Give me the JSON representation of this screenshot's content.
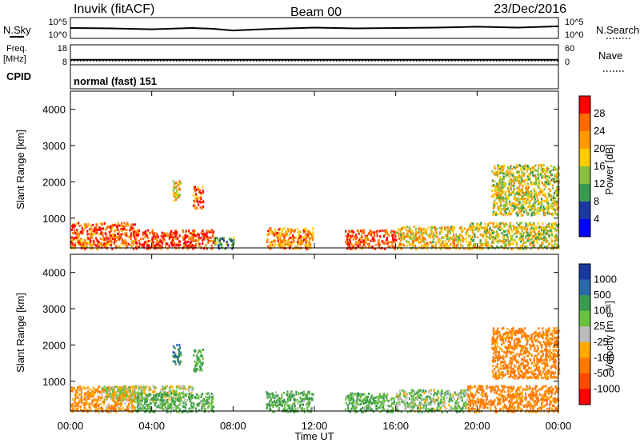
{
  "header": {
    "station": "Inuvik (fitACF)",
    "beam": "Beam 00",
    "date": "23/Dec/2016"
  },
  "panels": {
    "nsky_label": "N.Sky",
    "nsearch_label": "N.Search",
    "left_top_tick": "10^5",
    "left_bottom_tick": "10^0",
    "right_top_tick": "10^5",
    "right_bottom_tick": "10^0",
    "freq_label": "Freq.",
    "freq_unit": "[MHz]",
    "freq_top": "18",
    "freq_bottom": "8",
    "nave_label": "Nave",
    "nave_top": "60",
    "nave_bottom": "0",
    "cpid_label": "CPID",
    "cpid_value": "normal (fast) 151"
  },
  "axes": {
    "ylabel": "Slant Range [km]",
    "xlabel": "Time UT",
    "yticks": [
      "4000",
      "3000",
      "2000",
      "1000"
    ],
    "xticks": [
      "00:00",
      "04:00",
      "08:00",
      "12:00",
      "16:00",
      "20:00",
      "00:00"
    ]
  },
  "colorbars": {
    "power": {
      "label": "Power [dB]",
      "ticks": [
        "28",
        "24",
        "20",
        "16",
        "12",
        "8",
        "4"
      ],
      "colors": [
        "#ff0000",
        "#ff6a00",
        "#ff9a00",
        "#ffcc00",
        "#88c040",
        "#3a9a50",
        "#1a3aa0",
        "#0000ff"
      ]
    },
    "velocity": {
      "label": "Velocity [m s⁻¹]",
      "ticks": [
        "1000",
        "500",
        "100",
        "25",
        "-25",
        "-100",
        "-500",
        "-1000"
      ],
      "colors": [
        "#1a3aa0",
        "#2a6aa8",
        "#3a9a50",
        "#6ac040",
        "#bbbbbb",
        "#ffaa00",
        "#ff7a00",
        "#ff4a00",
        "#ff0000"
      ]
    }
  },
  "chart_data": [
    {
      "type": "line",
      "title": "N.Sky / N.Search",
      "x": [
        0,
        2,
        4,
        6,
        7,
        8,
        10,
        12,
        14,
        16,
        18,
        19,
        20,
        22,
        24
      ],
      "y": [
        2.5,
        2.4,
        2.2,
        2.5,
        2.3,
        1.9,
        2.3,
        2.6,
        2.4,
        2.5,
        2.6,
        2.7,
        2.8,
        2.6,
        2.9
      ],
      "xlim": [
        0,
        24
      ],
      "ylim": [
        0,
        5
      ],
      "yscale": "log"
    },
    {
      "type": "line",
      "title": "Freq. / Nave",
      "x": [
        0,
        24
      ],
      "series": [
        {
          "name": "Freq.",
          "values": [
            10.5,
            10.5
          ]
        },
        {
          "name": "Nave",
          "values": [
            12,
            12
          ]
        }
      ],
      "xlim": [
        0,
        24
      ],
      "ylim": [
        8,
        18
      ]
    },
    {
      "type": "heatmap",
      "title": "Power [dB]",
      "x_range": [
        0,
        24
      ],
      "ylim": [
        180,
        4500
      ],
      "zlim": [
        0,
        30
      ],
      "scatter_regions": [
        {
          "t0": 0.0,
          "t1": 3.2,
          "r0": 180,
          "r1": 900,
          "level": 24
        },
        {
          "t0": 3.2,
          "t1": 7.0,
          "r0": 180,
          "r1": 700,
          "level": 26
        },
        {
          "t0": 7.0,
          "t1": 8.0,
          "r0": 180,
          "r1": 500,
          "level": 10
        },
        {
          "t0": 9.6,
          "t1": 11.9,
          "r0": 180,
          "r1": 750,
          "level": 22
        },
        {
          "t0": 13.5,
          "t1": 16.0,
          "r0": 180,
          "r1": 700,
          "level": 26
        },
        {
          "t0": 16.0,
          "t1": 19.5,
          "r0": 180,
          "r1": 800,
          "level": 18
        },
        {
          "t0": 19.5,
          "t1": 24.0,
          "r0": 180,
          "r1": 900,
          "level": 16
        },
        {
          "t0": 5.0,
          "t1": 5.4,
          "r0": 1500,
          "r1": 2050,
          "level": 18
        },
        {
          "t0": 6.0,
          "t1": 6.5,
          "r0": 1300,
          "r1": 1900,
          "level": 22
        },
        {
          "t0": 20.7,
          "t1": 24.0,
          "r0": 1100,
          "r1": 2500,
          "level": 16
        }
      ]
    },
    {
      "type": "heatmap",
      "title": "Velocity [m s⁻¹]",
      "x_range": [
        0,
        24
      ],
      "ylim": [
        180,
        4500
      ],
      "zlim": [
        -1000,
        1000
      ],
      "scatter_regions": [
        {
          "t0": 0.0,
          "t1": 3.2,
          "r0": 180,
          "r1": 900,
          "level": -100
        },
        {
          "t0": 1.5,
          "t1": 6.0,
          "r0": 500,
          "r1": 900,
          "level": 0
        },
        {
          "t0": 3.2,
          "t1": 7.0,
          "r0": 180,
          "r1": 700,
          "level": 100
        },
        {
          "t0": 9.6,
          "t1": 11.9,
          "r0": 180,
          "r1": 750,
          "level": 100
        },
        {
          "t0": 13.5,
          "t1": 16.0,
          "r0": 180,
          "r1": 700,
          "level": 100
        },
        {
          "t0": 16.0,
          "t1": 19.5,
          "r0": 180,
          "r1": 800,
          "level": 50
        },
        {
          "t0": 19.5,
          "t1": 24.0,
          "r0": 180,
          "r1": 900,
          "level": -150
        },
        {
          "t0": 20.7,
          "t1": 24.0,
          "r0": 1100,
          "r1": 2500,
          "level": -150
        },
        {
          "t0": 5.0,
          "t1": 5.4,
          "r0": 1500,
          "r1": 2050,
          "level": 500
        },
        {
          "t0": 6.0,
          "t1": 6.5,
          "r0": 1300,
          "r1": 1900,
          "level": 100
        }
      ]
    }
  ]
}
